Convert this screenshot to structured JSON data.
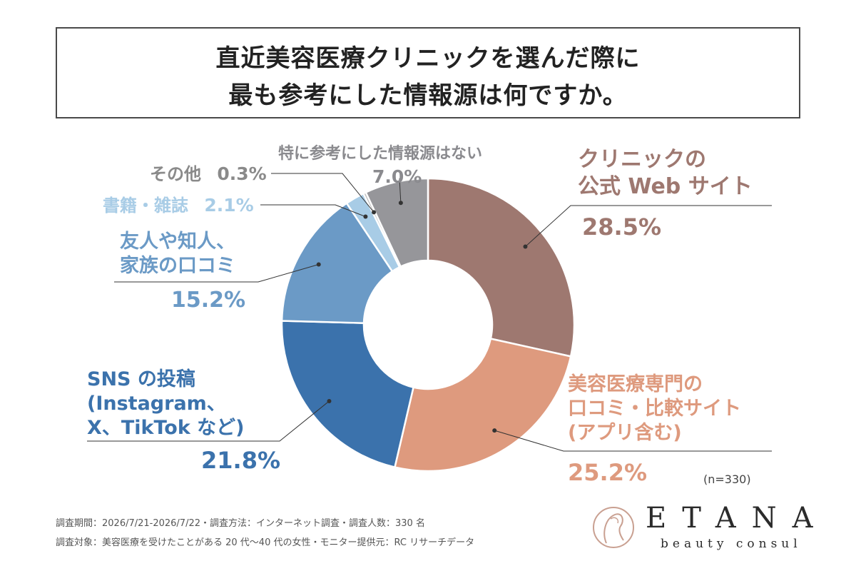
{
  "title": {
    "line1": "直近美容医療クリニックを選んだ際に",
    "line2": "最も参考にした情報源は何ですか。"
  },
  "chart_data": {
    "type": "pie",
    "title": "直近美容医療クリニックを選んだ際に 最も参考にした情報源は何ですか。",
    "unit": "%",
    "series": [
      {
        "id": "web",
        "label_lines": [
          "クリニックの",
          "公式 Web サイト"
        ],
        "value": 28.5,
        "value_label": "28.5%",
        "color": "#9e7870"
      },
      {
        "id": "review",
        "label_lines": [
          "美容医療専門の",
          "口コミ・比較サイト",
          "(アプリ含む)"
        ],
        "value": 25.2,
        "value_label": "25.2%",
        "color": "#de9a7e"
      },
      {
        "id": "sns",
        "label_lines": [
          "SNS の投稿",
          "(Instagram、",
          "X、TikTok など)"
        ],
        "value": 21.8,
        "value_label": "21.8%",
        "color": "#3b72ac"
      },
      {
        "id": "friends",
        "label_lines": [
          "友人や知人、",
          "家族の口コミ"
        ],
        "value": 15.2,
        "value_label": "15.2%",
        "color": "#6b9ac6"
      },
      {
        "id": "books",
        "label_lines": [
          "書籍・雑誌"
        ],
        "value": 2.1,
        "value_label": "2.1%",
        "color": "#a8cce6"
      },
      {
        "id": "other",
        "label_lines": [
          "その他"
        ],
        "value": 0.3,
        "value_label": "0.3%",
        "color": "#b8b8b8"
      },
      {
        "id": "none",
        "label_lines": [
          "特に参考にした情報源はない"
        ],
        "value": 7.0,
        "value_label": "7.0%",
        "color": "#96969a"
      }
    ],
    "sample": "(n=330)"
  },
  "footnotes": {
    "line1": "調査期間：2026/7/21-2026/7/22・調査方法：インターネット調査・調査人数：330 名",
    "line2": "調査対象：美容医療を受けたことがある 20 代〜40 代の女性・モニター提供元：RC リサーチデータ"
  },
  "logo": {
    "name": "ETANA",
    "tagline": "beauty consul"
  }
}
